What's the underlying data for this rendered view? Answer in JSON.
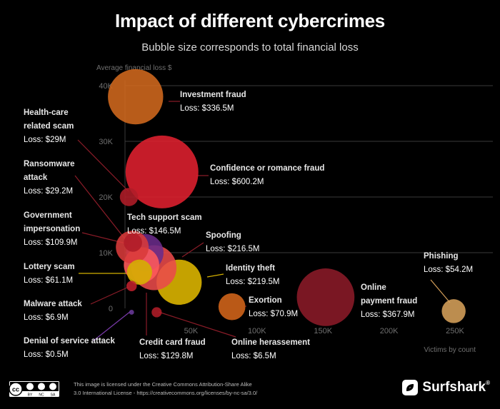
{
  "title": "Impact of different cybercrimes",
  "subtitle": "Bubble size corresponds to total financial loss",
  "footer": {
    "license_line1": "This image is licensed under the Creative Commons Attribution-Share Alike",
    "license_line2": "3.0 International License - https://creativecommons.org/licenses/by-nc-sa/3.0/",
    "cc_labels": [
      "BY",
      "NC",
      "SA"
    ],
    "brand": "Surfshark",
    "brand_mark": "®"
  },
  "colors": {
    "background": "#000000",
    "grid": "#3a3a3a",
    "axis_text": "#6f6f6f",
    "label_text": "#ffffff",
    "leader": "#8a1c28"
  },
  "chart_data": {
    "type": "scatter",
    "title": "Impact of different cybercrimes",
    "subtitle": "Bubble size corresponds to total financial loss",
    "xlabel": "Victims by count",
    "ylabel": "Average financial loss $",
    "xlim": [
      0,
      260000
    ],
    "ylim": [
      0,
      40000
    ],
    "x_ticks": [
      50000,
      100000,
      150000,
      200000,
      250000
    ],
    "x_tick_labels": [
      "50K",
      "100K",
      "150K",
      "200K",
      "250K"
    ],
    "y_ticks": [
      0,
      10000,
      20000,
      30000,
      40000
    ],
    "y_tick_labels": [
      "0",
      "10K",
      "20K",
      "30K",
      "40K"
    ],
    "grid": true,
    "size_encoding": "total financial loss",
    "points": [
      {
        "name": "Investment fraud",
        "name_lines": [
          "Investment fraud"
        ],
        "loss_label": "Loss: $336.5M",
        "loss": 336.5,
        "x": 8000,
        "y": 38000,
        "color": "#d2691e"
      },
      {
        "name": "Confidence or romance fraud",
        "name_lines": [
          "Confidence or romance fraud"
        ],
        "loss_label": "Loss: $600.2M",
        "loss": 600.2,
        "x": 28000,
        "y": 24500,
        "color": "#e0202f"
      },
      {
        "name": "Health-care related scam",
        "name_lines": [
          "Health-care",
          "related scam"
        ],
        "loss_label": "Loss: $29M",
        "loss": 29,
        "x": 3000,
        "y": 20000,
        "color": "#b01c28"
      },
      {
        "name": "Ransomware attack",
        "name_lines": [
          "Ransomware",
          "attack"
        ],
        "loss_label": "Loss: $29.2M",
        "loss": 29.2,
        "x": 6000,
        "y": 11800,
        "color": "#b01c28"
      },
      {
        "name": "Government impersonation",
        "name_lines": [
          "Government",
          "impersonation"
        ],
        "loss_label": "Loss: $109.9M",
        "loss": 109.9,
        "x": 5500,
        "y": 11000,
        "color": "#d93a3a"
      },
      {
        "name": "Tech support scam",
        "name_lines": [
          "Tech support scam"
        ],
        "loss_label": "Loss: $146.5M",
        "loss": 146.5,
        "x": 15000,
        "y": 10000,
        "color": "#6a2b8a"
      },
      {
        "name": "Spoofing",
        "name_lines": [
          "Spoofing"
        ],
        "loss_label": "Loss: $216.5M",
        "loss": 216.5,
        "x": 22000,
        "y": 7300,
        "color": "#ea4a4a"
      },
      {
        "name": "Lottery scam",
        "name_lines": [
          "Lottery scam"
        ],
        "loss_label": "Loss: $61.1M",
        "loss": 61.1,
        "x": 11000,
        "y": 6500,
        "color": "#d4b000"
      },
      {
        "name": "Identity theft",
        "name_lines": [
          "Identity theft"
        ],
        "loss_label": "Loss: $219.5M",
        "loss": 219.5,
        "x": 41000,
        "y": 4700,
        "color": "#e0b800"
      },
      {
        "name": "Malware attack",
        "name_lines": [
          "Malware attack"
        ],
        "loss_label": "Loss: $6.9M",
        "loss": 6.9,
        "x": 5000,
        "y": 4000,
        "color": "#c0202c"
      },
      {
        "name": "Exortion",
        "name_lines": [
          "Exortion"
        ],
        "loss_label": "Loss: $70.9M",
        "loss": 70.9,
        "x": 81000,
        "y": 300,
        "color": "#d4651a"
      },
      {
        "name": "Online payment fraud",
        "name_lines": [
          "Online",
          "payment fraud"
        ],
        "loss_label": "Loss: $367.9M",
        "loss": 367.9,
        "x": 152000,
        "y": 2000,
        "color": "#8b1a28"
      },
      {
        "name": "Phishing",
        "name_lines": [
          "Phishing"
        ],
        "loss_label": "Loss: $54.2M",
        "loss": 54.2,
        "x": 249000,
        "y": -500,
        "color": "#d6a05a"
      },
      {
        "name": "Denial of service attack",
        "name_lines": [
          "Denial of service attack"
        ],
        "loss_label": "Loss: $0.5M",
        "loss": 0.5,
        "x": 5000,
        "y": -700,
        "color": "#6a3a9a"
      },
      {
        "name": "Credit card fraud",
        "name_lines": [
          "Credit card fraud"
        ],
        "loss_label": "Loss: $129.8M",
        "loss": 129.8,
        "x": 12500,
        "y": 7800,
        "color": "#ff5a5a"
      },
      {
        "name": "Online herassement",
        "name_lines": [
          "Online herassement"
        ],
        "loss_label": "Loss: $6.5M",
        "loss": 6.5,
        "x": 24000,
        "y": -700,
        "color": "#b01c28"
      }
    ]
  }
}
